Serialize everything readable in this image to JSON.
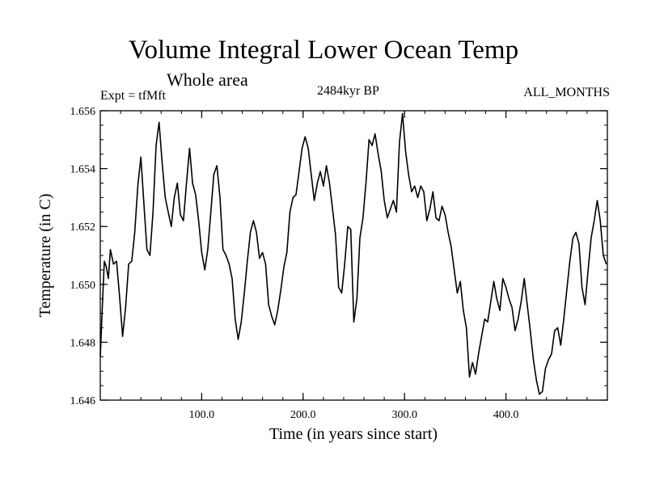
{
  "chart_data": {
    "type": "line",
    "title": "Volume Integral Lower Ocean Temp",
    "subtitle": "Whole area",
    "left_label": "Expt = tfMft",
    "center_label": "2484kyr BP",
    "right_label": "ALL_MONTHS",
    "xlabel": "Time (in years since start)",
    "ylabel": "Temperature (in C)",
    "xlim": [
      0,
      500
    ],
    "ylim": [
      1.646,
      1.656
    ],
    "x_ticks": [
      {
        "value": 100,
        "label": "100.0"
      },
      {
        "value": 200,
        "label": "200.0"
      },
      {
        "value": 300,
        "label": "300.0"
      },
      {
        "value": 400,
        "label": "400.0"
      }
    ],
    "y_ticks": [
      {
        "value": 1.646,
        "label": "1.646"
      },
      {
        "value": 1.648,
        "label": "1.648"
      },
      {
        "value": 1.65,
        "label": "1.650"
      },
      {
        "value": 1.652,
        "label": "1.652"
      },
      {
        "value": 1.654,
        "label": "1.654"
      },
      {
        "value": 1.656,
        "label": "1.656"
      }
    ],
    "series": [
      {
        "name": "Lower Ocean Temp",
        "color": "#000000",
        "x": [
          0,
          2,
          4,
          6,
          8,
          10,
          13,
          16,
          19,
          22,
          25,
          28,
          31,
          34,
          37,
          40,
          43,
          46,
          49,
          52,
          55,
          58,
          61,
          64,
          67,
          70,
          73,
          76,
          79,
          82,
          85,
          88,
          91,
          94,
          97,
          100,
          103,
          106,
          109,
          112,
          115,
          118,
          121,
          124,
          127,
          130,
          133,
          136,
          139,
          142,
          145,
          148,
          151,
          154,
          157,
          160,
          163,
          166,
          169,
          172,
          175,
          178,
          181,
          184,
          187,
          190,
          193,
          196,
          199,
          202,
          205,
          208,
          211,
          214,
          217,
          220,
          223,
          226,
          229,
          232,
          235,
          238,
          241,
          244,
          247,
          250,
          253,
          256,
          259,
          262,
          265,
          268,
          271,
          274,
          277,
          280,
          283,
          286,
          289,
          292,
          295,
          298,
          301,
          304,
          307,
          310,
          313,
          316,
          319,
          322,
          325,
          328,
          331,
          334,
          337,
          340,
          343,
          346,
          349,
          352,
          355,
          358,
          361,
          364,
          367,
          370,
          373,
          376,
          379,
          382,
          385,
          388,
          391,
          394,
          397,
          400,
          403,
          406,
          409,
          412,
          415,
          418,
          421,
          424,
          427,
          430,
          433,
          436,
          439,
          442,
          445,
          448,
          451,
          454,
          457,
          460,
          463,
          466,
          469,
          472,
          475,
          478,
          481,
          484,
          487,
          490,
          493,
          496,
          499
        ],
        "y": [
          1.6475,
          1.6492,
          1.6508,
          1.6506,
          1.6502,
          1.6512,
          1.6507,
          1.6508,
          1.6496,
          1.6482,
          1.6492,
          1.6507,
          1.6508,
          1.6518,
          1.6534,
          1.6544,
          1.6528,
          1.6512,
          1.651,
          1.6525,
          1.6548,
          1.6556,
          1.6542,
          1.653,
          1.6525,
          1.652,
          1.653,
          1.6535,
          1.6524,
          1.6522,
          1.6535,
          1.6547,
          1.6535,
          1.6531,
          1.6522,
          1.6511,
          1.6505,
          1.6512,
          1.6525,
          1.6538,
          1.6541,
          1.653,
          1.6512,
          1.651,
          1.6507,
          1.6502,
          1.6488,
          1.6481,
          1.6487,
          1.6497,
          1.6508,
          1.6518,
          1.6522,
          1.6518,
          1.6509,
          1.6511,
          1.6507,
          1.6493,
          1.6489,
          1.6486,
          1.6491,
          1.6498,
          1.6506,
          1.6511,
          1.6525,
          1.653,
          1.6531,
          1.6539,
          1.6547,
          1.6551,
          1.6547,
          1.6538,
          1.6529,
          1.6535,
          1.6539,
          1.6534,
          1.6541,
          1.6535,
          1.6526,
          1.6517,
          1.6499,
          1.6497,
          1.6507,
          1.652,
          1.6519,
          1.6487,
          1.6495,
          1.6516,
          1.6523,
          1.6535,
          1.655,
          1.6548,
          1.6552,
          1.6545,
          1.6539,
          1.6529,
          1.6523,
          1.6526,
          1.6529,
          1.6525,
          1.6549,
          1.6559,
          1.6546,
          1.6538,
          1.6532,
          1.6534,
          1.653,
          1.6534,
          1.6532,
          1.6522,
          1.6526,
          1.6532,
          1.6523,
          1.6522,
          1.6527,
          1.6524,
          1.6518,
          1.6513,
          1.6505,
          1.6497,
          1.6501,
          1.6491,
          1.6485,
          1.6468,
          1.6473,
          1.6469,
          1.6476,
          1.6482,
          1.6488,
          1.6487,
          1.6494,
          1.6501,
          1.6495,
          1.6491,
          1.6502,
          1.6499,
          1.6495,
          1.6492,
          1.6484,
          1.6488,
          1.6494,
          1.6502,
          1.6493,
          1.6484,
          1.6474,
          1.6467,
          1.6462,
          1.6463,
          1.6471,
          1.6474,
          1.6476,
          1.6484,
          1.6485,
          1.6479,
          1.6488,
          1.6498,
          1.6508,
          1.6516,
          1.6518,
          1.6514,
          1.6499,
          1.6493,
          1.6505,
          1.6516,
          1.6522,
          1.6529,
          1.6522,
          1.651,
          1.6507
        ]
      }
    ]
  }
}
